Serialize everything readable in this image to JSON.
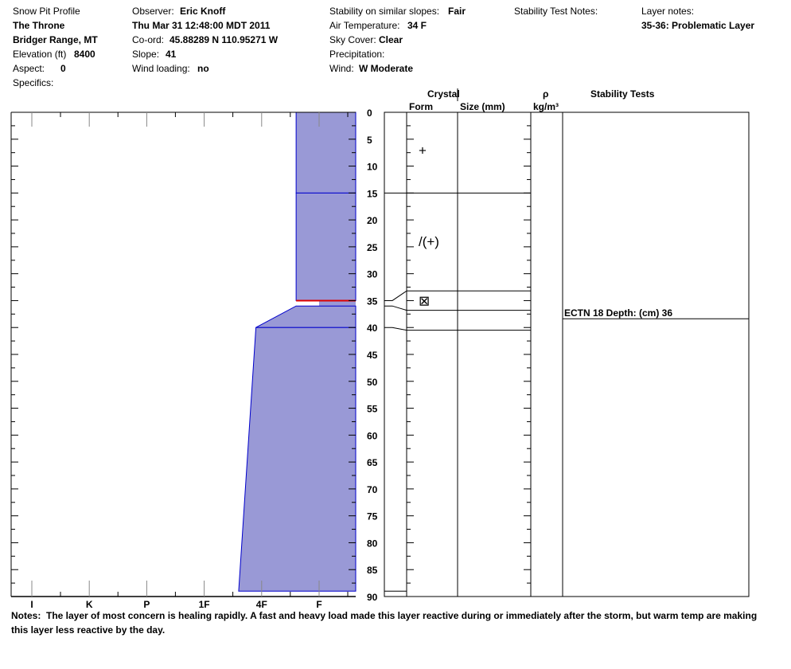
{
  "header": {
    "title": "Snow Pit Profile",
    "location": "The Throne",
    "range": "Bridger Range, MT",
    "elevation_label": "Elevation (ft)",
    "elevation": "8400",
    "aspect_label": "Aspect:",
    "aspect": "0",
    "specifics_label": "Specifics:",
    "observer_label": "Observer:",
    "observer": "Eric Knoff",
    "datetime": "Thu Mar 31 12:48:00 MDT 2011",
    "coord_label": "Co-ord:",
    "coord": "45.88289 N 110.95271 W",
    "slope_label": "Slope:",
    "slope": "41",
    "wind_loading_label": "Wind loading:",
    "wind_loading": "no",
    "stability_label": "Stability on similar slopes:",
    "stability": "Fair",
    "air_temp_label": "Air Temperature:",
    "air_temp": "34 F",
    "sky_label": "Sky Cover:",
    "sky": "Clear",
    "precip_label": "Precipitation:",
    "wind_label": "Wind:",
    "wind": "W Moderate",
    "stability_test_notes_label": "Stability Test Notes:",
    "layer_notes_label": "Layer notes:",
    "layer_notes": "35-36: Problematic Layer"
  },
  "table_headers": {
    "crystal": "Crystal",
    "form": "Form",
    "size": "Size (mm)",
    "rho": "ρ",
    "density_unit": "kg/m³",
    "stability_tests": "Stability Tests"
  },
  "chart_data": {
    "type": "area",
    "hardness_ticks": [
      "I",
      "K",
      "P",
      "1F",
      "4F",
      "F"
    ],
    "depth_ticks": [
      "0",
      "5",
      "10",
      "15",
      "20",
      "25",
      "30",
      "35",
      "40",
      "45",
      "50",
      "55",
      "60",
      "65",
      "70",
      "75",
      "80",
      "85",
      "90"
    ],
    "depth_range_cm": [
      0,
      90
    ],
    "layers": [
      {
        "top": 0,
        "bottom": 15,
        "hardness_top": 4.6,
        "hardness_bottom": 4.6,
        "form": "+"
      },
      {
        "top": 15,
        "bottom": 35,
        "hardness_top": 4.6,
        "hardness_bottom": 4.6,
        "form": "/(+)"
      },
      {
        "top": 35,
        "bottom": 36,
        "hardness_top": 5.0,
        "hardness_bottom": 5.0,
        "form": "⊠",
        "concern": true
      },
      {
        "top": 36,
        "bottom": 40,
        "hardness_top": 4.6,
        "hardness_bottom": 3.9
      },
      {
        "top": 40,
        "bottom": 89,
        "hardness_top": 3.9,
        "hardness_bottom": 3.6
      }
    ],
    "fill_color": "#9999d6",
    "edge_color": "#0000cc",
    "concern_color": "#dd0000"
  },
  "stability_tests": [
    {
      "label": "ECTN 18   Depth: (cm) 36",
      "depth": 36
    }
  ],
  "notes": {
    "label": "Notes:",
    "text": "The layer of most concern is healing rapidly.  A fast and heavy load made this layer reactive during or immediately after the storm, but warm temp are making this layer less reactive by the day."
  }
}
